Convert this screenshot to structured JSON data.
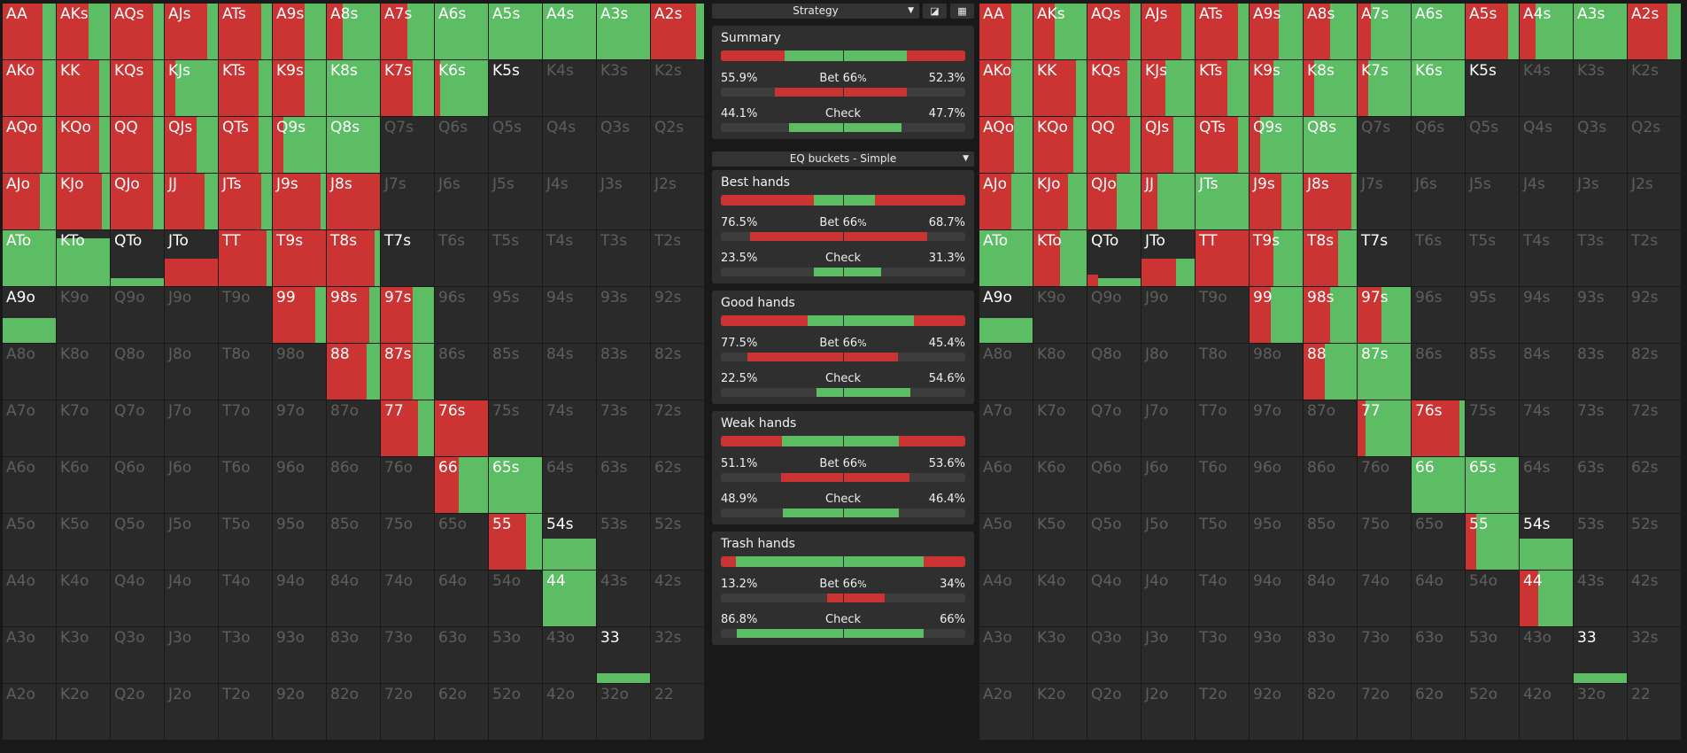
{
  "hand_labels": [
    [
      "AA",
      "AKs",
      "AQs",
      "AJs",
      "ATs",
      "A9s",
      "A8s",
      "A7s",
      "A6s",
      "A5s",
      "A4s",
      "A3s",
      "A2s"
    ],
    [
      "AKo",
      "KK",
      "KQs",
      "KJs",
      "KTs",
      "K9s",
      "K8s",
      "K7s",
      "K6s",
      "K5s",
      "K4s",
      "K3s",
      "K2s"
    ],
    [
      "AQo",
      "KQo",
      "QQ",
      "QJs",
      "QTs",
      "Q9s",
      "Q8s",
      "Q7s",
      "Q6s",
      "Q5s",
      "Q4s",
      "Q3s",
      "Q2s"
    ],
    [
      "AJo",
      "KJo",
      "QJo",
      "JJ",
      "JTs",
      "J9s",
      "J8s",
      "J7s",
      "J6s",
      "J5s",
      "J4s",
      "J3s",
      "J2s"
    ],
    [
      "ATo",
      "KTo",
      "QTo",
      "JTo",
      "TT",
      "T9s",
      "T8s",
      "T7s",
      "T6s",
      "T5s",
      "T4s",
      "T3s",
      "T2s"
    ],
    [
      "A9o",
      "K9o",
      "Q9o",
      "J9o",
      "T9o",
      "99",
      "98s",
      "97s",
      "96s",
      "95s",
      "94s",
      "93s",
      "92s"
    ],
    [
      "A8o",
      "K8o",
      "Q8o",
      "J8o",
      "T8o",
      "98o",
      "88",
      "87s",
      "86s",
      "85s",
      "84s",
      "83s",
      "82s"
    ],
    [
      "A7o",
      "K7o",
      "Q7o",
      "J7o",
      "T7o",
      "97o",
      "87o",
      "77",
      "76s",
      "75s",
      "74s",
      "73s",
      "72s"
    ],
    [
      "A6o",
      "K6o",
      "Q6o",
      "J6o",
      "T6o",
      "96o",
      "86o",
      "76o",
      "66",
      "65s",
      "64s",
      "63s",
      "62s"
    ],
    [
      "A5o",
      "K5o",
      "Q5o",
      "J5o",
      "T5o",
      "95o",
      "85o",
      "75o",
      "65o",
      "55",
      "54s",
      "53s",
      "52s"
    ],
    [
      "A4o",
      "K4o",
      "Q4o",
      "J4o",
      "T4o",
      "94o",
      "84o",
      "74o",
      "64o",
      "54o",
      "44",
      "43s",
      "42s"
    ],
    [
      "A3o",
      "K3o",
      "Q3o",
      "J3o",
      "T3o",
      "93o",
      "83o",
      "73o",
      "63o",
      "53o",
      "43o",
      "33",
      "32s"
    ],
    [
      "A2o",
      "K2o",
      "Q2o",
      "J2o",
      "T2o",
      "92o",
      "82o",
      "72o",
      "62o",
      "52o",
      "42o",
      "32o",
      "22"
    ]
  ],
  "left_grid": {
    "AA": {
      "bet": 0.75,
      "check": 0.25
    },
    "AKs": {
      "bet": 0.6,
      "check": 0.4
    },
    "AQs": {
      "bet": 0.8,
      "check": 0.2
    },
    "AJs": {
      "bet": 0.8,
      "check": 0.2
    },
    "ATs": {
      "bet": 0.8,
      "check": 0.2
    },
    "A9s": {
      "bet": 0.6,
      "check": 0.4
    },
    "A8s": {
      "bet": 0.3,
      "check": 0.7
    },
    "A7s": {
      "bet": 0.5,
      "check": 0.5
    },
    "A6s": {
      "bet": 0,
      "check": 1
    },
    "A5s": {
      "bet": 0,
      "check": 1
    },
    "A4s": {
      "bet": 0,
      "check": 1
    },
    "A3s": {
      "bet": 0,
      "check": 1
    },
    "A2s": {
      "bet": 0.85,
      "check": 0.15
    },
    "AKo": {
      "bet": 0.75,
      "check": 0.25
    },
    "KK": {
      "bet": 0.8,
      "check": 0.2
    },
    "KQs": {
      "bet": 0.8,
      "check": 0.2
    },
    "KJs": {
      "bet": 0.2,
      "check": 0.8
    },
    "KTs": {
      "bet": 0.75,
      "check": 0.25
    },
    "K9s": {
      "bet": 0.6,
      "check": 0.4
    },
    "K8s": {
      "bet": 0,
      "check": 1
    },
    "K7s": {
      "bet": 0.6,
      "check": 0.4
    },
    "K6s": {
      "bet": 0.1,
      "check": 0.9
    },
    "K5s": {
      "bet": 0,
      "check": 0
    },
    "AQo": {
      "bet": 0.75,
      "check": 0.25
    },
    "KQo": {
      "bet": 0.8,
      "check": 0.2
    },
    "QQ": {
      "bet": 0.8,
      "check": 0.2
    },
    "QJs": {
      "bet": 0.6,
      "check": 0.4
    },
    "QTs": {
      "bet": 0.75,
      "check": 0.25
    },
    "Q9s": {
      "bet": 0.2,
      "check": 0.8
    },
    "Q8s": {
      "bet": 0,
      "check": 1
    },
    "AJo": {
      "bet": 0.7,
      "check": 0.3
    },
    "KJo": {
      "bet": 0.85,
      "check": 0.15
    },
    "QJo": {
      "bet": 0.8,
      "check": 0.2
    },
    "JJ": {
      "bet": 0.75,
      "check": 0.25
    },
    "JTs": {
      "bet": 0.8,
      "check": 0.2
    },
    "J9s": {
      "bet": 0.9,
      "check": 0.1
    },
    "J8s": {
      "bet": 1,
      "check": 0
    },
    "ATo": {
      "bet": 0,
      "check": 1
    },
    "KTo": {
      "bet": 0,
      "check": 0.85,
      "vert": true
    },
    "QTo": {
      "bet": 0,
      "check": 0.15,
      "vert": true
    },
    "JTo": {
      "bet": 0.5,
      "check": 0,
      "vert": true
    },
    "TT": {
      "bet": 0.9,
      "check": 0.1
    },
    "T9s": {
      "bet": 1,
      "check": 0
    },
    "T8s": {
      "bet": 0.9,
      "check": 0.1
    },
    "T7s": {
      "bet": 0,
      "check": 0
    },
    "A9o": {
      "bet": 0,
      "check": 0.45,
      "vert": true
    },
    "99": {
      "bet": 0.8,
      "check": 0.2
    },
    "98s": {
      "bet": 0.8,
      "check": 0.2
    },
    "97s": {
      "bet": 0.6,
      "check": 0.4
    },
    "88": {
      "bet": 0.75,
      "check": 0.25
    },
    "87s": {
      "bet": 0.6,
      "check": 0.4
    },
    "77": {
      "bet": 0.7,
      "check": 0.3
    },
    "76s": {
      "bet": 1,
      "check": 0
    },
    "66": {
      "bet": 0.45,
      "check": 0.55
    },
    "65s": {
      "bet": 0,
      "check": 1
    },
    "55": {
      "bet": 0.7,
      "check": 0.3
    },
    "54s": {
      "bet": 0,
      "check": 0.55,
      "vert": true
    },
    "44": {
      "bet": 0,
      "check": 1
    },
    "33": {
      "bet": 0,
      "check": 0.18,
      "vert": true
    }
  },
  "right_grid": {
    "AA": {
      "bet": 0.6,
      "check": 0.4
    },
    "AKs": {
      "bet": 0.4,
      "check": 0.6
    },
    "AQs": {
      "bet": 0.8,
      "check": 0.2
    },
    "AJs": {
      "bet": 0.75,
      "check": 0.25
    },
    "ATs": {
      "bet": 0.8,
      "check": 0.2
    },
    "A9s": {
      "bet": 0.55,
      "check": 0.45
    },
    "A8s": {
      "bet": 0.5,
      "check": 0.5
    },
    "A7s": {
      "bet": 0.25,
      "check": 0.75
    },
    "A6s": {
      "bet": 0,
      "check": 1
    },
    "A5s": {
      "bet": 0.8,
      "check": 0.2
    },
    "A4s": {
      "bet": 0.3,
      "check": 0.7
    },
    "A3s": {
      "bet": 0,
      "check": 1
    },
    "A2s": {
      "bet": 0.75,
      "check": 0.25
    },
    "AKo": {
      "bet": 0.6,
      "check": 0.4
    },
    "KK": {
      "bet": 0.8,
      "check": 0.2
    },
    "KQs": {
      "bet": 0.75,
      "check": 0.25
    },
    "KJs": {
      "bet": 0.45,
      "check": 0.55
    },
    "KTs": {
      "bet": 0.6,
      "check": 0.4
    },
    "K9s": {
      "bet": 0.45,
      "check": 0.55
    },
    "K8s": {
      "bet": 0.2,
      "check": 0.8
    },
    "K7s": {
      "bet": 0.2,
      "check": 0.8
    },
    "K6s": {
      "bet": 0,
      "check": 1
    },
    "K5s": {
      "bet": 0,
      "check": 0
    },
    "AQo": {
      "bet": 0.65,
      "check": 0.35
    },
    "KQo": {
      "bet": 0.75,
      "check": 0.25
    },
    "QQ": {
      "bet": 0.8,
      "check": 0.2
    },
    "QJs": {
      "bet": 0.6,
      "check": 0.4
    },
    "QTs": {
      "bet": 0.8,
      "check": 0.2
    },
    "Q9s": {
      "bet": 0.2,
      "check": 0.8
    },
    "Q8s": {
      "bet": 0,
      "check": 1
    },
    "AJo": {
      "bet": 0.6,
      "check": 0.4
    },
    "KJo": {
      "bet": 0.65,
      "check": 0.35
    },
    "QJo": {
      "bet": 0.55,
      "check": 0.45
    },
    "JJ": {
      "bet": 0.3,
      "check": 0.7
    },
    "JTs": {
      "bet": 0,
      "check": 1
    },
    "J9s": {
      "bet": 0.6,
      "check": 0.4
    },
    "J8s": {
      "bet": 0.9,
      "check": 0.1
    },
    "ATo": {
      "bet": 0,
      "check": 1
    },
    "KTo": {
      "bet": 0.5,
      "check": 0.5
    },
    "QTo": {
      "bet": 0.2,
      "check": 0.15,
      "vert": true,
      "split": true
    },
    "JTo": {
      "bet": 0.65,
      "check": 0.35,
      "vertsplit": true
    },
    "TT": {
      "bet": 1,
      "check": 0
    },
    "T9s": {
      "bet": 0.45,
      "check": 0.55
    },
    "T8s": {
      "bet": 0.65,
      "check": 0.35
    },
    "T7s": {
      "bet": 0,
      "check": 0
    },
    "A9o": {
      "bet": 0,
      "check": 0.45,
      "vert": true
    },
    "99": {
      "bet": 0.4,
      "check": 0.6
    },
    "98s": {
      "bet": 0.5,
      "check": 0.5
    },
    "97s": {
      "bet": 0.45,
      "check": 0.55
    },
    "88": {
      "bet": 0.4,
      "check": 0.6
    },
    "87s": {
      "bet": 0,
      "check": 1
    },
    "77": {
      "bet": 0.15,
      "check": 0.85
    },
    "76s": {
      "bet": 0.9,
      "check": 0.1
    },
    "66": {
      "bet": 0,
      "check": 1
    },
    "65s": {
      "bet": 0,
      "check": 1
    },
    "55": {
      "bet": 0.2,
      "check": 0.8
    },
    "54s": {
      "bet": 0,
      "check": 0.55,
      "vert": true
    },
    "44": {
      "bet": 0.35,
      "check": 0.65
    },
    "33": {
      "bet": 0,
      "check": 0.18,
      "vert": true
    }
  },
  "center": {
    "strategy_label": "Strategy",
    "icon_a": "◪",
    "icon_b": "▦",
    "eq_label": "EQ buckets - Simple",
    "caret": "▼",
    "summary": {
      "title": "Summary",
      "split": [
        0.26,
        0.5,
        0.24
      ],
      "bet": {
        "left": "55.9%",
        "label": "Bet",
        "size": "66",
        "unit": "%",
        "right": "52.3%",
        "lfill": 0.56,
        "rfill": 0.52
      },
      "check": {
        "left": "44.1%",
        "label": "Check",
        "right": "47.7%",
        "lfill": 0.44,
        "rfill": 0.48
      }
    },
    "buckets": [
      {
        "title": "Best hands",
        "split": [
          0.38,
          0.25,
          0.37
        ],
        "bet": {
          "left": "76.5%",
          "label": "Bet",
          "size": "66",
          "unit": "%",
          "right": "68.7%",
          "lfill": 0.76,
          "rfill": 0.69
        },
        "check": {
          "left": "23.5%",
          "label": "Check",
          "right": "31.3%",
          "lfill": 0.24,
          "rfill": 0.31
        }
      },
      {
        "title": "Good hands",
        "split": [
          0.39,
          0.48,
          0.23
        ],
        "bet": {
          "left": "77.5%",
          "label": "Bet",
          "size": "66",
          "unit": "%",
          "right": "45.4%",
          "lfill": 0.78,
          "rfill": 0.45
        },
        "check": {
          "left": "22.5%",
          "label": "Check",
          "right": "54.6%",
          "lfill": 0.22,
          "rfill": 0.55
        }
      },
      {
        "title": "Weak hands",
        "split": [
          0.25,
          0.48,
          0.27
        ],
        "bet": {
          "left": "51.1%",
          "label": "Bet",
          "size": "66",
          "unit": "%",
          "right": "53.6%",
          "lfill": 0.51,
          "rfill": 0.54
        },
        "check": {
          "left": "48.9%",
          "label": "Check",
          "right": "46.4%",
          "lfill": 0.49,
          "rfill": 0.46
        }
      },
      {
        "title": "Trash hands",
        "split": [
          0.06,
          0.77,
          0.17
        ],
        "bet": {
          "left": "13.2%",
          "label": "Bet",
          "size": "66",
          "unit": "%",
          "right": "34%",
          "lfill": 0.13,
          "rfill": 0.34
        },
        "check": {
          "left": "86.8%",
          "label": "Check",
          "right": "66%",
          "lfill": 0.87,
          "rfill": 0.66
        }
      }
    ]
  }
}
